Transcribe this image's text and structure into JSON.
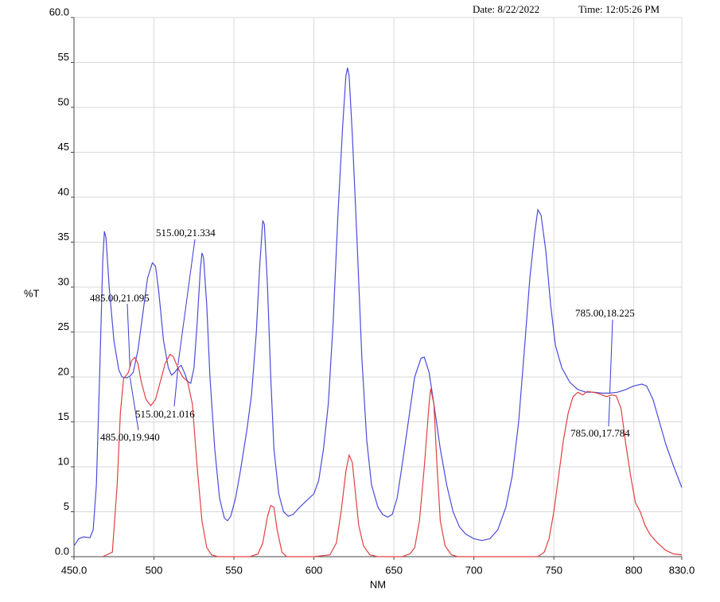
{
  "chart_data": {
    "type": "line",
    "date": "Date: 8/22/2022",
    "time": "Time: 12:05:26 PM",
    "y_label": "%T",
    "x_label": "NM",
    "xlim": [
      450,
      830
    ],
    "xticks": [
      {
        "value": 450,
        "label": "450.0"
      },
      500,
      550,
      600,
      650,
      700,
      750,
      800,
      {
        "value": 830,
        "label": "830.0"
      }
    ],
    "ylim": [
      0,
      60
    ],
    "yticks": [
      {
        "value": 0,
        "label": "0.0"
      },
      5,
      10,
      15,
      20,
      25,
      30,
      35,
      40,
      45,
      50,
      55,
      {
        "value": 60,
        "label": "60.0"
      }
    ],
    "grid": true,
    "series": [
      {
        "color": "#4b4bdc",
        "x": [
          450,
          453,
          456,
          460,
          462,
          464,
          466,
          468,
          469,
          470,
          472,
          475,
          478,
          480,
          483,
          485,
          487,
          490,
          493,
          496,
          499,
          501,
          503,
          506,
          509,
          511,
          513,
          515,
          517,
          519,
          521,
          523,
          525,
          527,
          529,
          530,
          531,
          533,
          535,
          538,
          541,
          544,
          546,
          548,
          551,
          554,
          558,
          561,
          564,
          566,
          568,
          569,
          571,
          573,
          575,
          578,
          581,
          584,
          587,
          590,
          594,
          597,
          600,
          603,
          606,
          609,
          612,
          615,
          618,
          620,
          621,
          622,
          624,
          627,
          630,
          633,
          636,
          640,
          643,
          646,
          649,
          652,
          655,
          659,
          663,
          667,
          669,
          672,
          675,
          679,
          683,
          687,
          691,
          695,
          700,
          705,
          710,
          715,
          720,
          724,
          728,
          732,
          735,
          738,
          740,
          742,
          745,
          748,
          751,
          755,
          760,
          765,
          770,
          775,
          780,
          785,
          790,
          795,
          800,
          805,
          808,
          812,
          816,
          820,
          825,
          830
        ],
        "values": [
          1.2,
          2,
          2.2,
          2.1,
          3,
          8,
          20,
          33,
          36.2,
          35.5,
          30,
          24,
          20.8,
          20,
          19.9,
          20.1,
          20.5,
          23,
          27,
          31,
          32.7,
          32.3,
          29.5,
          24,
          21,
          20.2,
          20.5,
          21,
          21.3,
          20.5,
          19.5,
          19.3,
          21,
          26,
          32,
          33.8,
          33.3,
          28,
          20,
          12,
          6.5,
          4.3,
          4,
          4.5,
          6.5,
          9.5,
          14,
          18,
          25,
          32,
          37.4,
          37,
          30,
          20,
          12,
          7,
          5,
          4.5,
          4.7,
          5.3,
          6,
          6.5,
          7,
          8.5,
          12,
          17,
          26,
          38,
          48,
          53.5,
          54.4,
          53.5,
          47,
          35,
          22,
          13,
          8,
          5.5,
          4.7,
          4.4,
          4.7,
          6.5,
          10,
          15,
          20,
          22.1,
          22.2,
          20.5,
          17,
          12,
          8,
          5,
          3.3,
          2.5,
          2,
          1.8,
          2,
          3,
          5.5,
          9,
          15,
          24,
          31,
          36,
          38.6,
          38,
          34,
          28,
          23.5,
          21,
          19.4,
          18.6,
          18.3,
          18.3,
          18.2,
          18.2,
          18.3,
          18.6,
          19,
          19.2,
          19,
          17.5,
          15,
          12.5,
          10,
          7.7
        ]
      },
      {
        "color": "#e04040",
        "x": [
          468,
          474,
          477,
          479,
          481,
          484,
          486,
          488,
          490,
          492,
          495,
          498,
          501,
          504,
          507,
          510,
          512,
          515,
          518,
          521,
          524,
          527,
          530,
          533,
          536,
          540,
          560,
          565,
          568,
          571,
          573,
          575,
          577,
          580,
          583,
          600,
          610,
          614,
          617,
          620,
          622,
          624,
          626,
          628,
          631,
          635,
          640,
          655,
          660,
          663,
          666,
          669,
          672,
          673,
          675,
          677,
          679,
          682,
          686,
          690,
          740,
          744,
          747,
          750,
          753,
          756,
          759,
          762,
          765,
          768,
          771,
          774,
          777,
          780,
          783,
          786,
          789,
          792,
          795,
          798,
          801,
          804,
          807,
          810,
          815,
          820,
          825,
          830
        ],
        "values": [
          0,
          0.5,
          8,
          16,
          19.8,
          20.5,
          21.8,
          22.2,
          21.5,
          19.5,
          17.5,
          16.8,
          17.5,
          19.5,
          21.5,
          22.5,
          22.3,
          21,
          20,
          19.5,
          17,
          10,
          4,
          1,
          0.2,
          0,
          0,
          0.3,
          1.5,
          4.5,
          5.7,
          5.5,
          3,
          0.5,
          0,
          0,
          0.2,
          1.5,
          5,
          9.5,
          11.3,
          10.5,
          7,
          3.5,
          1.2,
          0.2,
          0,
          0,
          0.3,
          1,
          4,
          10,
          17,
          18.7,
          17,
          10,
          4,
          1.2,
          0.2,
          0,
          0,
          0.5,
          2,
          5,
          9,
          13,
          16,
          17.8,
          18.3,
          18,
          18.4,
          18.3,
          18.2,
          18,
          17.8,
          18,
          17.9,
          16.5,
          12.5,
          9,
          6,
          5,
          3.5,
          2.5,
          1.5,
          0.7,
          0.3,
          0.2
        ]
      }
    ],
    "annotations": [
      {
        "label": "485.00,21.095",
        "x": 485,
        "y": 21.095
      },
      {
        "label": "485.00,19.940",
        "x": 485,
        "y": 19.94
      },
      {
        "label": "515.00,21.334",
        "x": 515,
        "y": 21.334
      },
      {
        "label": "515.00,21.016",
        "x": 515,
        "y": 21.016
      },
      {
        "label": "785.00,18.225",
        "x": 785,
        "y": 18.225
      },
      {
        "label": "785.00,17.784",
        "x": 785,
        "y": 17.784
      }
    ]
  }
}
